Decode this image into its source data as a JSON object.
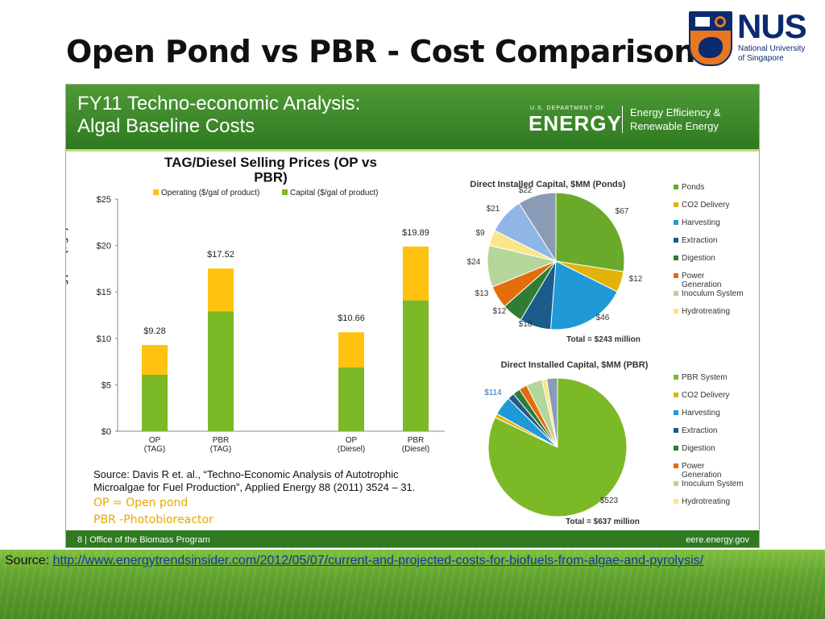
{
  "slide": {
    "title": "Open Pond vs PBR - Cost Comparison",
    "source_label": "Source:",
    "source_url": "http://www.energytrendsinsider.com/2012/05/07/current-and-projected-costs-for-biofuels-from-algae-and-pyrolysis/"
  },
  "logo": {
    "letters": "NUS",
    "sub": "National University\nof Singapore"
  },
  "embedded_slide": {
    "banner_title": "FY11 Techno-economic Analysis:\nAlgal Baseline Costs",
    "doe_small": "U.S. DEPARTMENT OF",
    "doe_word": "ENERGY",
    "doe_office": "Energy Efficiency &\nRenewable Energy",
    "footer_left": "8 | Office of the Biomass Program",
    "footer_right": "eere.energy.gov",
    "source_note": "Source:  Davis R et. al., “Techno-Economic  Analysis of Autotrophic\nMicroalgae for Fuel Production”, Applied Energy 88 (2011) 3524 – 31.",
    "abbrev_op": "OP = Open pond",
    "abbrev_pbr": "PBR  -Photobioreactor"
  },
  "colors": {
    "operating": "#ffc20e",
    "capital": "#7cb927",
    "ponds": "#6aaa2a",
    "co2": "#e3b30c",
    "harvesting": "#1f9ad6",
    "extraction": "#1a5c8a",
    "digestion": "#2e7d32",
    "power": "#e46c0a",
    "inoculum": "#b5d69a",
    "hydrotreating": "#fbe58a",
    "extra_blue": "#8fb6e6",
    "extra_slate": "#8a9bb5"
  },
  "chart_data": [
    {
      "type": "bar",
      "title": "TAG/Diesel Selling Prices (OP vs\nPBR)",
      "ylabel": "2012 Product selling price ($/gal)",
      "ylim": [
        0,
        25
      ],
      "yticks": [
        "$0",
        "$5",
        "$10",
        "$15",
        "$20",
        "$25"
      ],
      "categories": [
        "OP\n(TAG)",
        "PBR\n(TAG)",
        "OP\n(Diesel)",
        "PBR\n(Diesel)"
      ],
      "series": [
        {
          "name": "Operating ($/gal of product)",
          "values": [
            3.2,
            4.6,
            3.8,
            5.8
          ]
        },
        {
          "name": "Capital ($/gal of product)",
          "values": [
            6.08,
            12.92,
            6.86,
            14.09
          ]
        }
      ],
      "totals": [
        "$9.28",
        "$17.52",
        "$10.66",
        "$19.89"
      ],
      "legend_position": "top",
      "stacked": true
    },
    {
      "type": "pie",
      "title": "Direct Installed Capital, $MM (Ponds)",
      "slices": [
        {
          "label": "Ponds",
          "value": 67,
          "text": "$67"
        },
        {
          "label": "CO2 Delivery",
          "value": 12,
          "text": "$12"
        },
        {
          "label": "Harvesting",
          "value": 46,
          "text": "$46"
        },
        {
          "label": "Extraction",
          "value": 18,
          "text": "$18"
        },
        {
          "label": "Digestion",
          "value": 12,
          "text": "$12"
        },
        {
          "label": "Power Generation",
          "value": 13,
          "text": "$13"
        },
        {
          "label": "Inoculum System",
          "value": 24,
          "text": "$24"
        },
        {
          "label": "Hydrotreating",
          "value": 9,
          "text": "$9"
        },
        {
          "label": "",
          "value": 21,
          "text": "$21"
        },
        {
          "label": "",
          "value": 22,
          "text": "$22"
        }
      ],
      "legend": [
        "Ponds",
        "CO2 Delivery",
        "Harvesting",
        "Extraction",
        "Digestion",
        "Power\nGeneration",
        "Inoculum System",
        "Hydrotreating"
      ],
      "total_text": "Total = $243 million"
    },
    {
      "type": "pie",
      "title": "Direct Installed Capital, $MM (PBR)",
      "slices": [
        {
          "label": "PBR System",
          "value": 523,
          "text": "$523"
        },
        {
          "label": "CO2 Delivery",
          "value": 6,
          "text": ""
        },
        {
          "label": "Harvesting",
          "value": 28,
          "text": ""
        },
        {
          "label": "Extraction",
          "value": 10,
          "text": ""
        },
        {
          "label": "Digestion",
          "value": 11,
          "text": ""
        },
        {
          "label": "Power Generation",
          "value": 12,
          "text": ""
        },
        {
          "label": "Inoculum System",
          "value": 24,
          "text": ""
        },
        {
          "label": "Hydrotreating",
          "value": 7,
          "text": ""
        },
        {
          "label": "",
          "value": 16,
          "text": ""
        }
      ],
      "annotation": "$114",
      "legend": [
        "PBR System",
        "CO2 Delivery",
        "Harvesting",
        "Extraction",
        "Digestion",
        "Power\nGeneration",
        "Inoculum System",
        "Hydrotreating"
      ],
      "total_text": "Total = $637 million"
    }
  ]
}
